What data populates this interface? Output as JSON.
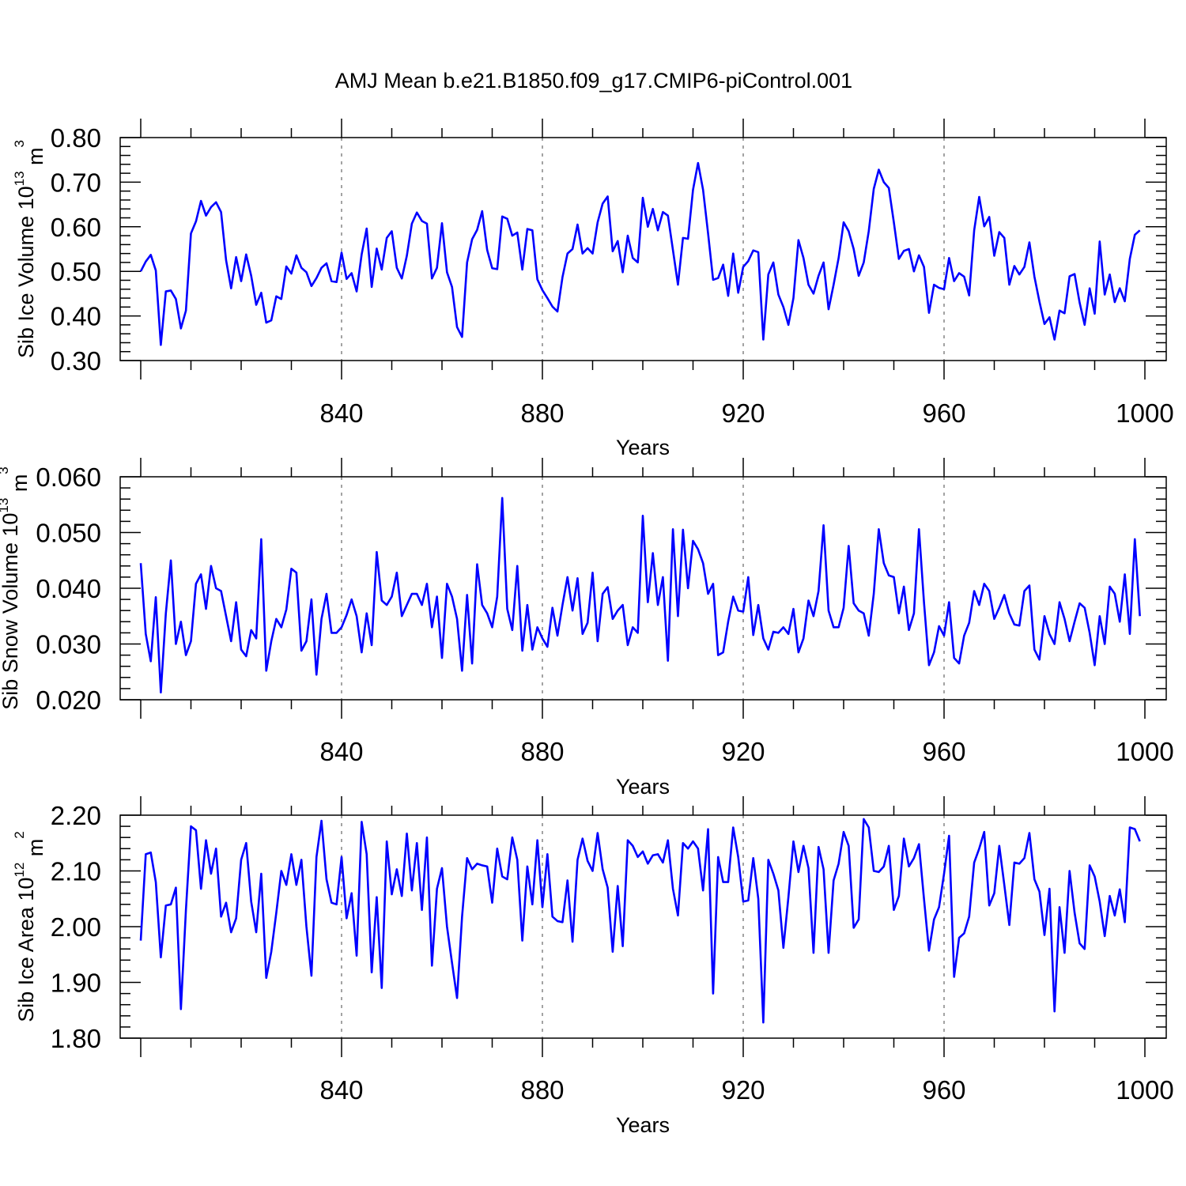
{
  "title": "AMJ Mean b.e21.B1850.f09_g17.CMIP6-piControl.001",
  "colors": {
    "series": "#0000ff",
    "axes": "#000000"
  },
  "chart_data": [
    {
      "type": "line",
      "ylabel_main": "Sib Ice Volume 10",
      "ylabel_sup": "13",
      "ylabel_unit": " m",
      "ylabel_unit_sup": "3",
      "xlabel": "Years",
      "xlim": [
        800,
        1000
      ],
      "ylim": [
        0.3,
        0.8
      ],
      "x_ticks": [
        "840",
        "880",
        "920",
        "960",
        "1000"
      ],
      "y_ticks": [
        "0.30",
        "0.40",
        "0.50",
        "0.60",
        "0.70",
        "0.80"
      ],
      "grid": "vertical dashed at labeled years",
      "x_start": 800,
      "values": [
        0.5,
        0.522,
        0.537,
        0.502,
        0.335,
        0.455,
        0.457,
        0.438,
        0.372,
        0.412,
        0.585,
        0.612,
        0.658,
        0.625,
        0.644,
        0.655,
        0.633,
        0.525,
        0.462,
        0.532,
        0.478,
        0.538,
        0.49,
        0.425,
        0.452,
        0.385,
        0.39,
        0.444,
        0.438,
        0.511,
        0.495,
        0.536,
        0.508,
        0.498,
        0.467,
        0.485,
        0.508,
        0.518,
        0.478,
        0.476,
        0.542,
        0.483,
        0.496,
        0.455,
        0.538,
        0.596,
        0.465,
        0.551,
        0.504,
        0.575,
        0.59,
        0.508,
        0.484,
        0.535,
        0.607,
        0.632,
        0.613,
        0.607,
        0.484,
        0.508,
        0.608,
        0.498,
        0.465,
        0.375,
        0.353,
        0.52,
        0.572,
        0.593,
        0.635,
        0.548,
        0.507,
        0.505,
        0.623,
        0.618,
        0.58,
        0.587,
        0.504,
        0.595,
        0.592,
        0.482,
        0.458,
        0.44,
        0.421,
        0.41,
        0.487,
        0.54,
        0.55,
        0.605,
        0.54,
        0.552,
        0.54,
        0.61,
        0.652,
        0.668,
        0.545,
        0.568,
        0.498,
        0.58,
        0.53,
        0.52,
        0.665,
        0.6,
        0.64,
        0.592,
        0.633,
        0.625,
        0.548,
        0.47,
        0.575,
        0.573,
        0.683,
        0.743,
        0.683,
        0.585,
        0.481,
        0.485,
        0.515,
        0.445,
        0.54,
        0.452,
        0.51,
        0.523,
        0.547,
        0.543,
        0.347,
        0.493,
        0.52,
        0.448,
        0.42,
        0.38,
        0.44,
        0.57,
        0.53,
        0.47,
        0.45,
        0.49,
        0.52,
        0.415,
        0.47,
        0.53,
        0.61,
        0.59,
        0.55,
        0.49,
        0.52,
        0.59,
        0.685,
        0.728,
        0.7,
        0.687,
        0.61,
        0.528,
        0.546,
        0.55,
        0.5,
        0.536,
        0.51,
        0.407,
        0.47,
        0.463,
        0.46,
        0.53,
        0.478,
        0.496,
        0.488,
        0.446,
        0.592,
        0.667,
        0.601,
        0.622,
        0.535,
        0.588,
        0.575,
        0.47,
        0.512,
        0.493,
        0.51,
        0.565,
        0.488,
        0.432,
        0.382,
        0.397,
        0.347,
        0.412,
        0.406,
        0.489,
        0.494,
        0.43,
        0.38,
        0.462,
        0.405,
        0.567,
        0.448,
        0.493,
        0.431,
        0.462,
        0.433,
        0.528,
        0.582,
        0.592
      ]
    },
    {
      "type": "line",
      "ylabel_main": "Sib Snow Volume 10",
      "ylabel_sup": "13",
      "ylabel_unit": " m",
      "ylabel_unit_sup": "3",
      "xlabel": "Years",
      "xlim": [
        800,
        1000
      ],
      "ylim": [
        0.02,
        0.06
      ],
      "x_ticks": [
        "840",
        "880",
        "920",
        "960",
        "1000"
      ],
      "y_ticks": [
        "0.020",
        "0.030",
        "0.040",
        "0.050",
        "0.060"
      ],
      "grid": "vertical dashed at labeled years",
      "x_start": 800,
      "values": [
        0.0445,
        0.0318,
        0.0269,
        0.0384,
        0.0213,
        0.0355,
        0.045,
        0.03,
        0.034,
        0.028,
        0.0305,
        0.0408,
        0.0425,
        0.0363,
        0.044,
        0.04,
        0.0395,
        0.035,
        0.0305,
        0.0375,
        0.029,
        0.0278,
        0.0325,
        0.031,
        0.0488,
        0.0252,
        0.0305,
        0.0345,
        0.033,
        0.0362,
        0.0435,
        0.0428,
        0.0288,
        0.0305,
        0.038,
        0.0245,
        0.0345,
        0.039,
        0.032,
        0.032,
        0.033,
        0.0352,
        0.038,
        0.035,
        0.0285,
        0.0355,
        0.0298,
        0.0465,
        0.0378,
        0.037,
        0.0385,
        0.0428,
        0.035,
        0.037,
        0.039,
        0.039,
        0.037,
        0.0408,
        0.033,
        0.0385,
        0.0275,
        0.0408,
        0.0385,
        0.0345,
        0.0252,
        0.0388,
        0.0265,
        0.0443,
        0.037,
        0.0355,
        0.033,
        0.0385,
        0.0562,
        0.0363,
        0.0325,
        0.044,
        0.0288,
        0.037,
        0.029,
        0.033,
        0.031,
        0.0295,
        0.0365,
        0.0315,
        0.037,
        0.042,
        0.036,
        0.0418,
        0.0318,
        0.0338,
        0.0428,
        0.0305,
        0.039,
        0.0402,
        0.0345,
        0.036,
        0.037,
        0.0298,
        0.033,
        0.032,
        0.053,
        0.0375,
        0.0463,
        0.037,
        0.042,
        0.027,
        0.0506,
        0.035,
        0.0505,
        0.04,
        0.0485,
        0.047,
        0.0445,
        0.039,
        0.0408,
        0.028,
        0.0285,
        0.034,
        0.0385,
        0.036,
        0.0358,
        0.042,
        0.0316,
        0.037,
        0.031,
        0.029,
        0.0322,
        0.032,
        0.033,
        0.0318,
        0.0363,
        0.0285,
        0.031,
        0.0378,
        0.035,
        0.0395,
        0.0513,
        0.036,
        0.033,
        0.033,
        0.0365,
        0.0476,
        0.0373,
        0.036,
        0.0355,
        0.0315,
        0.039,
        0.0506,
        0.0445,
        0.0423,
        0.042,
        0.0355,
        0.0403,
        0.0325,
        0.0355,
        0.0506,
        0.0375,
        0.0262,
        0.0285,
        0.0332,
        0.0315,
        0.0375,
        0.0275,
        0.0265,
        0.0315,
        0.0338,
        0.0395,
        0.037,
        0.0408,
        0.0395,
        0.0345,
        0.0365,
        0.0388,
        0.0355,
        0.0335,
        0.0333,
        0.0395,
        0.0405,
        0.029,
        0.0272,
        0.035,
        0.0318,
        0.03,
        0.0375,
        0.0345,
        0.0305,
        0.034,
        0.0373,
        0.0365,
        0.032,
        0.0262,
        0.035,
        0.03,
        0.0403,
        0.039,
        0.034,
        0.0425,
        0.0318,
        0.0488,
        0.035
      ]
    },
    {
      "type": "line",
      "ylabel_main": "Sib Ice Area 10",
      "ylabel_sup": "12",
      "ylabel_unit": " m",
      "ylabel_unit_sup": "2",
      "xlabel": "Years",
      "xlim": [
        800,
        1000
      ],
      "ylim": [
        1.8,
        2.2
      ],
      "x_ticks": [
        "840",
        "880",
        "920",
        "960",
        "1000"
      ],
      "y_ticks": [
        "1.80",
        "1.90",
        "2.00",
        "2.10",
        "2.20"
      ],
      "grid": "vertical dashed at labeled years",
      "x_start": 800,
      "values": [
        1.975,
        2.13,
        2.133,
        2.08,
        1.945,
        2.038,
        2.04,
        2.07,
        1.852,
        2.03,
        2.18,
        2.173,
        2.068,
        2.155,
        2.095,
        2.14,
        2.018,
        2.043,
        1.99,
        2.015,
        2.12,
        2.15,
        2.045,
        1.99,
        2.095,
        1.908,
        1.955,
        2.025,
        2.1,
        2.075,
        2.13,
        2.075,
        2.12,
        2.0,
        1.912,
        2.125,
        2.19,
        2.085,
        2.043,
        2.04,
        2.125,
        2.015,
        2.06,
        1.948,
        2.188,
        2.13,
        1.918,
        2.053,
        1.89,
        2.153,
        2.058,
        2.103,
        2.055,
        2.167,
        2.065,
        2.15,
        2.03,
        2.16,
        1.93,
        2.068,
        2.105,
        2.0,
        1.935,
        1.872,
        2.018,
        2.123,
        2.103,
        2.113,
        2.11,
        2.108,
        2.043,
        2.14,
        2.09,
        2.085,
        2.16,
        2.12,
        1.975,
        2.108,
        2.04,
        2.155,
        2.035,
        2.13,
        2.018,
        2.01,
        2.008,
        2.083,
        1.973,
        2.12,
        2.158,
        2.118,
        2.1,
        2.168,
        2.103,
        2.07,
        1.955,
        2.073,
        1.965,
        2.155,
        2.145,
        2.125,
        2.135,
        2.113,
        2.128,
        2.13,
        2.115,
        2.155,
        2.068,
        2.02,
        2.15,
        2.14,
        2.153,
        2.14,
        2.065,
        2.175,
        1.88,
        2.125,
        2.08,
        2.08,
        2.178,
        2.125,
        2.045,
        2.047,
        2.123,
        2.05,
        1.828,
        2.12,
        2.095,
        2.065,
        1.962,
        2.053,
        2.153,
        2.098,
        2.145,
        2.105,
        1.953,
        2.143,
        2.103,
        1.953,
        2.083,
        2.113,
        2.17,
        2.145,
        1.998,
        2.013,
        2.193,
        2.178,
        2.1,
        2.098,
        2.108,
        2.145,
        2.03,
        2.055,
        2.158,
        2.108,
        2.123,
        2.148,
        2.05,
        1.957,
        2.013,
        2.035,
        2.095,
        2.163,
        1.91,
        1.98,
        1.988,
        2.018,
        2.115,
        2.14,
        2.17,
        2.038,
        2.06,
        2.145,
        2.075,
        2.003,
        2.115,
        2.113,
        2.123,
        2.168,
        2.085,
        2.063,
        1.985,
        2.068,
        1.848,
        2.035,
        1.953,
        2.1,
        2.025,
        1.97,
        1.96,
        2.11,
        2.09,
        2.045,
        1.983,
        2.055,
        2.02,
        2.067,
        2.008,
        2.178,
        2.175,
        2.153
      ]
    }
  ]
}
